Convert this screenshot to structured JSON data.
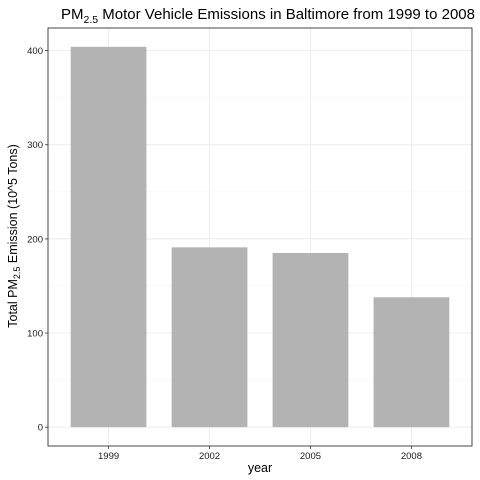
{
  "chart_data": {
    "type": "bar",
    "title": {
      "prefix": "PM",
      "subscript": "2.5",
      "suffix": " Motor Vehicle Emissions in Baltimore from 1999 to 2008"
    },
    "xlabel": "year",
    "ylabel": {
      "prefix": "Total PM",
      "subscript": "2.5",
      "suffix": " Emission (10^5 Tons)"
    },
    "categories": [
      "1999",
      "2002",
      "2005",
      "2008"
    ],
    "values": [
      404,
      191,
      185,
      138
    ],
    "ylim": [
      -20,
      424
    ],
    "yticks": [
      0,
      100,
      200,
      300,
      400
    ],
    "grid": true,
    "legend": "none",
    "bar_color": "#b3b3b3"
  }
}
